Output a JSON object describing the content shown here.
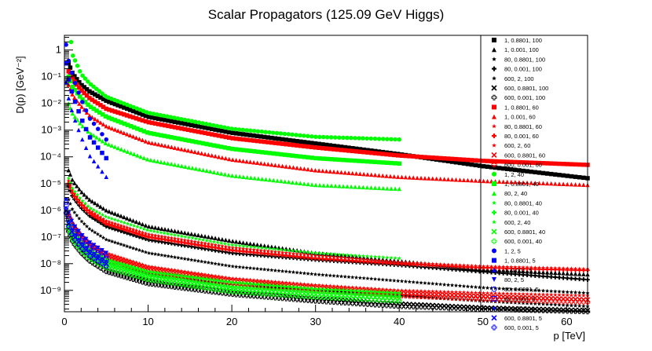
{
  "chart_data": {
    "type": "scatter",
    "title": "Scalar Propagators (125.09 GeV Higgs)",
    "xlabel": "p [TeV]",
    "ylabel": "D(p) [GeV⁻²]",
    "xlim": [
      0,
      62.5
    ],
    "ylim_log10": [
      -9.8,
      0.55
    ],
    "y_scale": "log",
    "grid": false,
    "legend_position": "right",
    "x_ticks": [
      0,
      10,
      20,
      30,
      40,
      50,
      60
    ],
    "y_ticks": [
      {
        "exp": 0,
        "label": "1"
      },
      {
        "exp": -1,
        "label": "10⁻¹"
      },
      {
        "exp": -2,
        "label": "10⁻²"
      },
      {
        "exp": -3,
        "label": "10⁻³"
      },
      {
        "exp": -4,
        "label": "10⁻⁴"
      },
      {
        "exp": -5,
        "label": "10⁻⁵"
      },
      {
        "exp": -6,
        "label": "10⁻⁶"
      },
      {
        "exp": -7,
        "label": "10⁻⁷"
      },
      {
        "exp": -8,
        "label": "10⁻⁸"
      },
      {
        "exp": -9,
        "label": "10⁻⁹"
      }
    ],
    "series": [
      {
        "name": "1, 0.8801, 100",
        "color": "#000000",
        "marker": "square",
        "x": [
          0.5,
          1,
          2,
          3,
          5,
          10,
          20,
          30,
          40,
          50,
          62.5
        ],
        "y": [
          -0.5,
          -0.9,
          -1.3,
          -1.55,
          -1.9,
          -2.5,
          -3.1,
          -3.5,
          -3.9,
          -4.35,
          -4.8
        ]
      },
      {
        "name": "1, 0.001, 100",
        "color": "#000000",
        "marker": "triangle",
        "x": [
          0.5,
          1,
          2,
          3,
          5,
          10,
          20,
          30,
          40,
          50,
          62.5
        ],
        "y": [
          -4.5,
          -4.9,
          -5.3,
          -5.6,
          -6.0,
          -6.6,
          -7.15,
          -7.6,
          -7.9,
          -8.2,
          -8.4
        ]
      },
      {
        "name": "80, 0.8801, 100",
        "color": "#000000",
        "marker": "star",
        "x": [
          0.5,
          1,
          2,
          3,
          5,
          10,
          20,
          30,
          40,
          50,
          62.5
        ],
        "y": [
          -5.6,
          -6.0,
          -6.4,
          -6.7,
          -7.1,
          -7.6,
          -8.1,
          -8.4,
          -8.65,
          -8.9,
          -9.1
        ]
      },
      {
        "name": "80, 0.001, 100",
        "color": "#000000",
        "marker": "cross",
        "x": [
          0.5,
          1,
          2,
          3,
          5,
          10,
          20,
          30,
          40,
          50,
          62.5
        ],
        "y": [
          -5.1,
          -5.5,
          -5.9,
          -6.2,
          -6.6,
          -7.1,
          -7.6,
          -7.85,
          -8.05,
          -8.3,
          -8.6
        ]
      },
      {
        "name": "600, 2, 100",
        "color": "#000000",
        "marker": "star",
        "x": [
          0.5,
          1,
          2,
          3,
          5,
          10,
          20,
          30,
          40,
          50,
          62.5
        ],
        "y": [
          -6.5,
          -6.9,
          -7.3,
          -7.6,
          -7.95,
          -8.4,
          -8.8,
          -9.0,
          -9.2,
          -9.4,
          -9.6
        ]
      },
      {
        "name": "600, 0.8801, 100",
        "color": "#000000",
        "marker": "x",
        "x": [
          0.5,
          1,
          2,
          3,
          5,
          10,
          20,
          30,
          40,
          50,
          62.5
        ],
        "y": [
          -6.7,
          -7.1,
          -7.5,
          -7.8,
          -8.2,
          -8.65,
          -9.05,
          -9.3,
          -9.5,
          -9.65,
          -9.75
        ]
      },
      {
        "name": "600, 0.001, 100",
        "color": "#000000",
        "marker": "open-cross",
        "x": [
          0.5,
          1,
          2,
          3,
          5,
          10,
          20,
          30,
          40,
          50,
          62.5
        ],
        "y": [
          -6.8,
          -7.2,
          -7.6,
          -7.9,
          -8.3,
          -8.75,
          -9.15,
          -9.4,
          -9.6,
          -9.7,
          -9.8
        ]
      },
      {
        "name": "1, 0.8801, 60",
        "color": "#ff0000",
        "marker": "square",
        "x": [
          0.5,
          1,
          2,
          3,
          5,
          10,
          20,
          30,
          40,
          50,
          62.5
        ],
        "y": [
          -0.8,
          -1.1,
          -1.5,
          -1.8,
          -2.2,
          -2.7,
          -3.3,
          -3.65,
          -3.95,
          -4.15,
          -4.3
        ]
      },
      {
        "name": "1, 0.001, 60",
        "color": "#ff0000",
        "marker": "triangle",
        "x": [
          0.5,
          1,
          2,
          3,
          5,
          10,
          20,
          30,
          40,
          50,
          62.5
        ],
        "y": [
          -1.3,
          -1.7,
          -2.1,
          -2.45,
          -2.85,
          -3.45,
          -4.1,
          -4.5,
          -4.75,
          -4.9,
          -5.05
        ]
      },
      {
        "name": "80, 0.8801, 60",
        "color": "#ff0000",
        "marker": "star",
        "x": [
          0.5,
          1,
          2,
          3,
          5,
          10,
          20,
          30,
          40,
          50,
          62.5
        ],
        "y": [
          -4.9,
          -5.3,
          -5.7,
          -6.0,
          -6.4,
          -6.9,
          -7.4,
          -7.7,
          -7.95,
          -8.1,
          -8.2
        ]
      },
      {
        "name": "80, 0.001, 60",
        "color": "#ff0000",
        "marker": "cross",
        "x": [
          0.5,
          1,
          2,
          3,
          5,
          10,
          20,
          30,
          40,
          50,
          62.5
        ],
        "y": [
          -5.0,
          -5.4,
          -5.8,
          -6.1,
          -6.5,
          -7.0,
          -7.5,
          -7.8,
          -8.0,
          -8.15,
          -8.25
        ]
      },
      {
        "name": "600, 2, 60",
        "color": "#ff0000",
        "marker": "star",
        "x": [
          0.5,
          1,
          2,
          3,
          5,
          10,
          20,
          30,
          40,
          50,
          62.5
        ],
        "y": [
          -6.1,
          -6.5,
          -6.9,
          -7.2,
          -7.6,
          -8.1,
          -8.55,
          -8.8,
          -9.0,
          -9.1,
          -9.2
        ]
      },
      {
        "name": "600, 0.8801, 60",
        "color": "#ff0000",
        "marker": "x",
        "x": [
          0.5,
          1,
          2,
          3,
          5,
          10,
          20,
          30,
          40,
          50,
          62.5
        ],
        "y": [
          -6.2,
          -6.6,
          -7.0,
          -7.3,
          -7.7,
          -8.2,
          -8.65,
          -8.9,
          -9.1,
          -9.22,
          -9.35
        ]
      },
      {
        "name": "600, 0.001, 60",
        "color": "#ff0000",
        "marker": "open-cross",
        "x": [
          0.5,
          1,
          2,
          3,
          5,
          10,
          20,
          30,
          40,
          50,
          62.5
        ],
        "y": [
          -6.3,
          -6.7,
          -7.1,
          -7.4,
          -7.8,
          -8.3,
          -8.75,
          -9.0,
          -9.2,
          -9.33,
          -9.45
        ]
      },
      {
        "name": "1, 2, 40",
        "color": "#00ff00",
        "marker": "circle",
        "x": [
          0.8,
          1,
          2,
          3,
          5,
          10,
          20,
          30,
          40
        ],
        "y": [
          0.3,
          -0.2,
          -0.9,
          -1.25,
          -1.75,
          -2.35,
          -2.95,
          -3.25,
          -3.35
        ]
      },
      {
        "name": "1, 0.8801, 40",
        "color": "#00ff00",
        "marker": "square",
        "x": [
          0.5,
          1,
          2,
          3,
          5,
          10,
          20,
          30,
          40
        ],
        "y": [
          -1.0,
          -1.4,
          -1.8,
          -2.1,
          -2.5,
          -3.1,
          -3.7,
          -4.05,
          -4.25
        ]
      },
      {
        "name": "80, 2, 40",
        "color": "#00ff00",
        "marker": "triangle",
        "x": [
          0.5,
          1,
          2,
          3,
          5,
          10,
          20,
          30,
          40
        ],
        "y": [
          -2.0,
          -2.4,
          -2.8,
          -3.1,
          -3.5,
          -4.1,
          -4.7,
          -5.05,
          -5.2
        ]
      },
      {
        "name": "80, 0.8801, 40",
        "color": "#00ff00",
        "marker": "star",
        "x": [
          0.5,
          1,
          2,
          3,
          5,
          10,
          20,
          30,
          40
        ],
        "y": [
          -4.8,
          -5.2,
          -5.6,
          -5.9,
          -6.25,
          -6.75,
          -7.3,
          -7.6,
          -7.8
        ]
      },
      {
        "name": "80, 0.001, 40",
        "color": "#00ff00",
        "marker": "cross",
        "x": [
          0.5,
          1,
          2,
          3,
          5,
          10,
          20,
          30,
          40
        ],
        "y": [
          -6.4,
          -6.8,
          -7.2,
          -7.5,
          -7.85,
          -8.3,
          -8.7,
          -8.95,
          -9.1
        ]
      },
      {
        "name": "600, 2, 40",
        "color": "#00ff00",
        "marker": "star",
        "x": [
          0.5,
          1,
          2,
          3,
          5,
          10,
          20,
          30,
          40
        ],
        "y": [
          -6.5,
          -6.9,
          -7.3,
          -7.6,
          -7.95,
          -8.4,
          -8.85,
          -9.05,
          -9.2
        ]
      },
      {
        "name": "600, 0.8801, 40",
        "color": "#00ff00",
        "marker": "x",
        "x": [
          0.5,
          1,
          2,
          3,
          5,
          10,
          20,
          30,
          40
        ],
        "y": [
          -6.6,
          -7.0,
          -7.4,
          -7.7,
          -8.05,
          -8.5,
          -8.95,
          -9.15,
          -9.3
        ]
      },
      {
        "name": "600, 0.001, 40",
        "color": "#00ff00",
        "marker": "open-cross",
        "x": [
          0.5,
          1,
          2,
          3,
          5,
          10,
          20,
          30,
          40
        ],
        "y": [
          -6.7,
          -7.1,
          -7.5,
          -7.8,
          -8.15,
          -8.6,
          -9.05,
          -9.25,
          -9.4
        ]
      },
      {
        "name": "1, 2, 5",
        "color": "#0000ff",
        "marker": "circle",
        "x": [
          0.2,
          0.5,
          1,
          2,
          3,
          5
        ],
        "y": [
          0.2,
          -0.4,
          -1.0,
          -1.85,
          -2.55,
          -3.35
        ]
      },
      {
        "name": "1, 0.8801, 5",
        "color": "#0000ff",
        "marker": "square",
        "x": [
          0.2,
          0.5,
          1,
          2,
          3,
          5
        ],
        "y": [
          -0.5,
          -1.1,
          -1.7,
          -2.55,
          -3.25,
          -4.05
        ]
      },
      {
        "name": "1, 0.001, 5",
        "color": "#0000ff",
        "marker": "triangle",
        "x": [
          0.2,
          0.5,
          1,
          2,
          3,
          5
        ],
        "y": [
          -1.2,
          -1.8,
          -2.4,
          -3.25,
          -3.95,
          -4.75
        ]
      },
      {
        "name": "80, 2, 5",
        "color": "#0000ff",
        "marker": "triangle-down",
        "x": [
          0.2,
          0.5,
          1,
          2,
          3,
          5
        ],
        "y": [
          -5.6,
          -6.1,
          -6.5,
          -6.9,
          -7.2,
          -7.6
        ]
      },
      {
        "name": "80, 0.8801, 5",
        "color": "#0000ff",
        "marker": "open-circle",
        "x": [
          0.2,
          0.5,
          1,
          2,
          3,
          5
        ],
        "y": [
          -5.7,
          -6.2,
          -6.6,
          -7.0,
          -7.3,
          -7.7
        ]
      },
      {
        "name": "80, 0.001, 5",
        "color": "#0000ff",
        "marker": "open-square",
        "x": [
          0.2,
          0.5,
          1,
          2,
          3,
          5
        ],
        "y": [
          -5.8,
          -6.3,
          -6.7,
          -7.1,
          -7.4,
          -7.8
        ]
      },
      {
        "name": "600, 2, 5",
        "color": "#0000ff",
        "marker": "star",
        "x": [
          0.2,
          0.5,
          1,
          2,
          3,
          5
        ],
        "y": [
          -5.9,
          -6.4,
          -6.8,
          -7.2,
          -7.5,
          -7.9
        ]
      },
      {
        "name": "600, 0.8801, 5",
        "color": "#0000ff",
        "marker": "x",
        "x": [
          0.2,
          0.5,
          1,
          2,
          3,
          5
        ],
        "y": [
          -6.0,
          -6.5,
          -6.9,
          -7.3,
          -7.6,
          -8.0
        ]
      },
      {
        "name": "600, 0.001, 5",
        "color": "#0000ff",
        "marker": "open-cross",
        "x": [
          0.2,
          0.5,
          1,
          2,
          3,
          5
        ],
        "y": [
          -6.1,
          -6.6,
          -7.0,
          -7.4,
          -7.7,
          -8.1
        ]
      }
    ]
  }
}
